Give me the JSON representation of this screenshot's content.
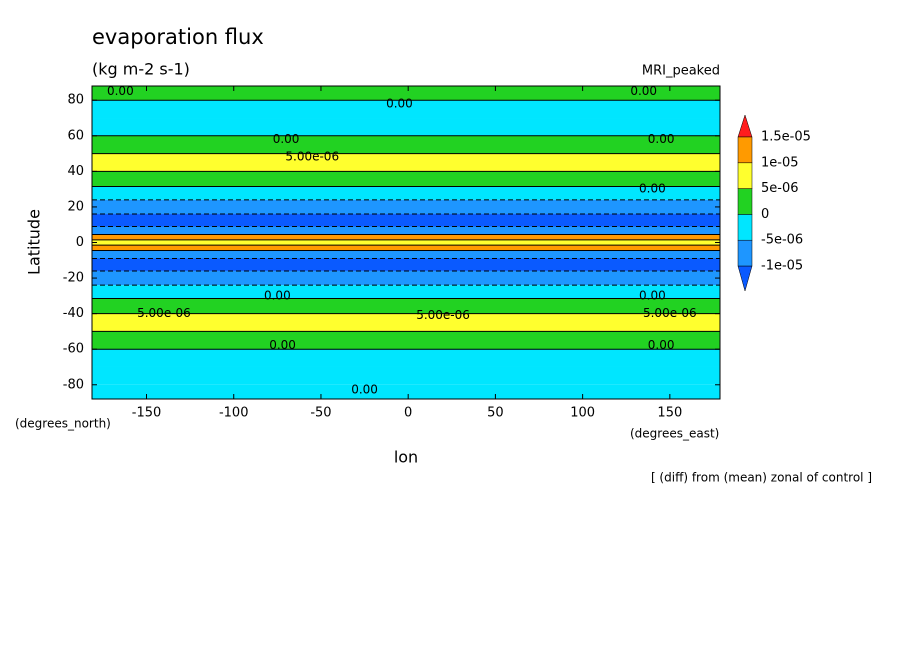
{
  "chart_data": {
    "type": "contour",
    "title": "evaporation flux",
    "subtitle": "(kg m-2 s-1)",
    "annotation": "MRI_peaked",
    "xlabel": "lon",
    "ylabel": "Latitude",
    "xunit": "(degrees_east)",
    "yunit": "(degrees_north)",
    "footnote": "[ (diff) from (mean) zonal of control ]",
    "xlim": [
      -181.25,
      178.75
    ],
    "ylim": [
      -88,
      88
    ],
    "xticks": [
      -150,
      -100,
      -50,
      0,
      50,
      100,
      150
    ],
    "yticks": [
      -80,
      -60,
      -40,
      -20,
      0,
      20,
      40,
      60,
      80
    ],
    "lat": [
      85,
      75,
      65,
      55,
      45,
      35,
      28,
      20,
      12,
      6,
      3,
      0,
      -3,
      -6,
      -12,
      -20,
      -28,
      -35,
      -45,
      -55,
      -65,
      -75,
      -85
    ],
    "values": [
      1e-06,
      -2e-06,
      -1e-06,
      2e-06,
      6e-06,
      2e-06,
      -2e-06,
      -7e-06,
      -1.1e-05,
      -7e-06,
      1.2e-05,
      7e-06,
      1.2e-05,
      -7e-06,
      -1.1e-05,
      -7e-06,
      -2e-06,
      2e-06,
      6e-06,
      2e-06,
      -2e-06,
      -2e-06,
      -2e-06
    ],
    "levels": [
      {
        "value": -1e-05,
        "label": "-1e-05"
      },
      {
        "value": -5e-06,
        "label": "-5e-06"
      },
      0,
      {
        "value": 5e-06,
        "label": "5e-06"
      },
      {
        "value": 1e-05,
        "label": "1e-05"
      },
      {
        "value": 1.5e-05,
        "label": "1.5e-05"
      }
    ],
    "colors": [
      "#0a5aff",
      "#1e96ff",
      "#00e6ff",
      "#22d222",
      "#ffff2e",
      "#ff9a00",
      "#ff1e1e"
    ],
    "contour_labels": [
      {
        "label": "0.00",
        "lon": -165,
        "lat": 85
      },
      {
        "label": "0.00",
        "lon": -5,
        "lat": 78
      },
      {
        "label": "0.00",
        "lon": 135,
        "lat": 85
      },
      {
        "label": "0.00",
        "lon": -70,
        "lat": 58
      },
      {
        "label": "0.00",
        "lon": 145,
        "lat": 58
      },
      {
        "label": "5.00e-06",
        "lon": -55,
        "lat": 48
      },
      {
        "label": "0.00",
        "lon": 140,
        "lat": 30
      },
      {
        "label": "0.00",
        "lon": -75,
        "lat": -30
      },
      {
        "label": "0.00",
        "lon": 140,
        "lat": -30
      },
      {
        "label": "5.00e-06",
        "lon": -140,
        "lat": -40
      },
      {
        "label": "5.00e-06",
        "lon": 20,
        "lat": -41
      },
      {
        "label": "5.00e-06",
        "lon": 150,
        "lat": -40
      },
      {
        "label": "0.00",
        "lon": -72,
        "lat": -58
      },
      {
        "label": "0.00",
        "lon": 145,
        "lat": -58
      },
      {
        "label": "0.00",
        "lon": -25,
        "lat": -83
      }
    ]
  }
}
